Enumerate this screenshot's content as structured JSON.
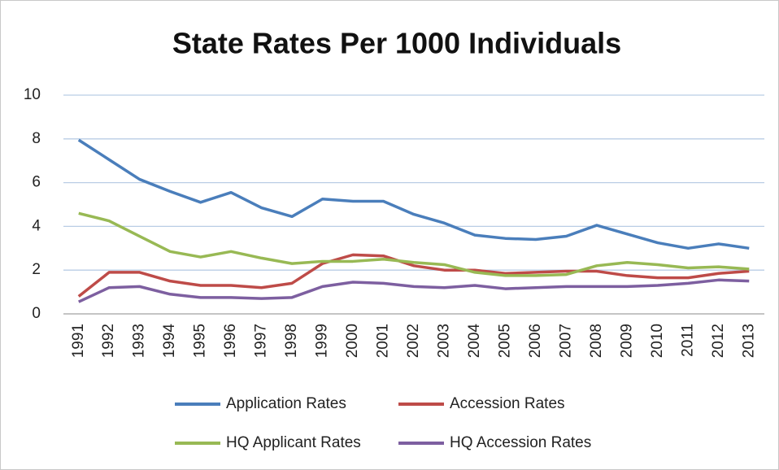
{
  "chart_data": {
    "type": "line",
    "title": "State Rates Per 1000 Individuals",
    "categories": [
      "1991",
      "1992",
      "1993",
      "1994",
      "1995",
      "1996",
      "1997",
      "1998",
      "1999",
      "2000",
      "2001",
      "2002",
      "2003",
      "2004",
      "2005",
      "2006",
      "2007",
      "2008",
      "2009",
      "2010",
      "2011",
      "2012",
      "2013"
    ],
    "series": [
      {
        "name": "Application Rates",
        "color": "#4a7ebb",
        "values": [
          7.95,
          7.05,
          6.15,
          5.6,
          5.1,
          5.55,
          4.85,
          4.45,
          5.25,
          5.15,
          5.15,
          4.55,
          4.15,
          3.6,
          3.45,
          3.4,
          3.55,
          4.05,
          3.65,
          3.25,
          3.0,
          3.2,
          3.0
        ]
      },
      {
        "name": "Accession Rates",
        "color": "#be4b48",
        "values": [
          0.8,
          1.9,
          1.9,
          1.5,
          1.3,
          1.3,
          1.2,
          1.4,
          2.3,
          2.7,
          2.65,
          2.2,
          2.0,
          2.0,
          1.85,
          1.9,
          1.95,
          1.95,
          1.75,
          1.65,
          1.65,
          1.85,
          1.95
        ]
      },
      {
        "name": "HQ Applicant Rates",
        "color": "#98b954",
        "values": [
          4.6,
          4.25,
          3.55,
          2.85,
          2.6,
          2.85,
          2.55,
          2.3,
          2.4,
          2.4,
          2.5,
          2.35,
          2.25,
          1.9,
          1.75,
          1.75,
          1.8,
          2.2,
          2.35,
          2.25,
          2.1,
          2.15,
          2.05
        ]
      },
      {
        "name": "HQ Accession Rates",
        "color": "#7d5fa0",
        "values": [
          0.55,
          1.2,
          1.25,
          0.9,
          0.75,
          0.75,
          0.7,
          0.75,
          1.25,
          1.45,
          1.4,
          1.25,
          1.2,
          1.3,
          1.15,
          1.2,
          1.25,
          1.25,
          1.25,
          1.3,
          1.4,
          1.55,
          1.5
        ]
      }
    ],
    "ylim": [
      0,
      10
    ],
    "yticks": [
      0,
      2,
      4,
      6,
      8,
      10
    ],
    "grid": true
  }
}
